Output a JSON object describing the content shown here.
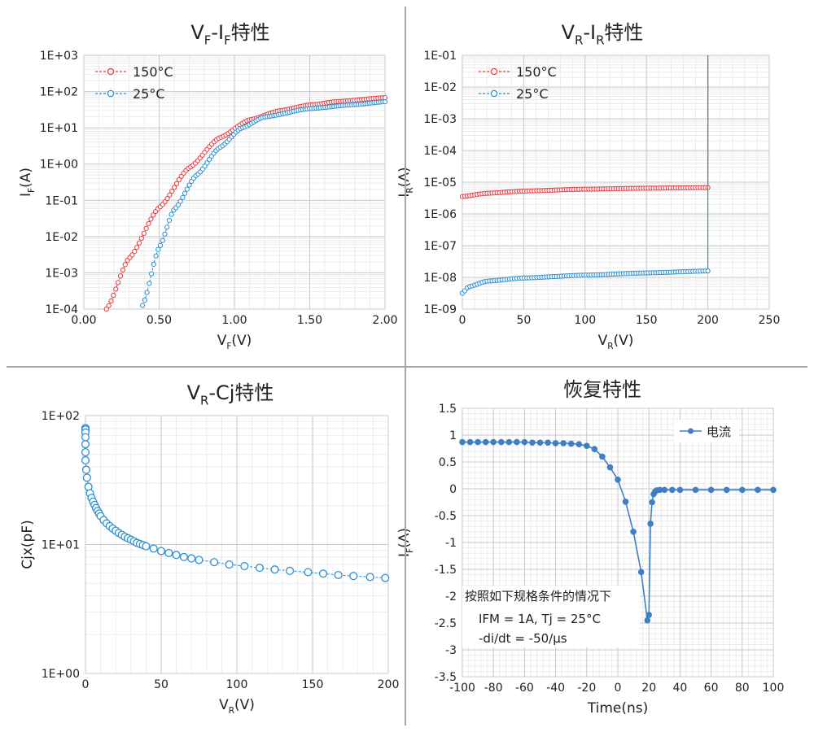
{
  "colors": {
    "hot": "#e8383d",
    "cold": "#2b8fcf",
    "blue": "#3f7fc4",
    "grid_major": "#c9c9c9",
    "grid_minor": "#e6e6e6",
    "divider": "#a6a6a6",
    "axis_text": "#222222"
  },
  "chart_data": [
    {
      "type": "scatter",
      "title": "VF-IF特性",
      "title_parts": [
        "V",
        "F",
        "-I",
        "F",
        "特性"
      ],
      "xlabel": "VF(V)",
      "xlabel_parts": [
        "V",
        "F",
        "(V)"
      ],
      "ylabel": "IF(A)",
      "ylabel_parts": [
        "I",
        "F",
        "(A)"
      ],
      "xlim": [
        0,
        2
      ],
      "ylim": [
        -4,
        3
      ],
      "yscale": "log",
      "xticks": [
        "0.00",
        "0.50",
        "1.00",
        "1.50",
        "2.00"
      ],
      "yticks": [
        "1E-04",
        "1E-03",
        "1E-02",
        "1E-01",
        "1E+00",
        "1E+01",
        "1E+02",
        "1E+03"
      ],
      "legend": "top-left",
      "series": [
        {
          "name": "150°C",
          "color_key": "hot",
          "x_range": [
            0.15,
            2.0
          ],
          "n": 120,
          "points_xy_log": [
            [
              0.15,
              -4
            ],
            [
              0.3,
              -2.6
            ],
            [
              0.5,
              -1.2
            ],
            [
              0.7,
              -0.1
            ],
            [
              0.9,
              0.72
            ],
            [
              1.1,
              1.22
            ],
            [
              1.3,
              1.47
            ],
            [
              1.5,
              1.63
            ],
            [
              1.7,
              1.73
            ],
            [
              2.0,
              1.83
            ]
          ]
        },
        {
          "name": "25°C",
          "color_key": "cold",
          "x_range": [
            0.39,
            2.0
          ],
          "n": 110,
          "points_xy_log": [
            [
              0.39,
              -3.9
            ],
            [
              0.5,
              -2.3
            ],
            [
              0.6,
              -1.25
            ],
            [
              0.75,
              -0.3
            ],
            [
              0.9,
              0.45
            ],
            [
              1.05,
              1.0
            ],
            [
              1.2,
              1.3
            ],
            [
              1.5,
              1.53
            ],
            [
              1.8,
              1.64
            ],
            [
              2.0,
              1.72
            ]
          ]
        }
      ]
    },
    {
      "type": "scatter",
      "title": "VR-IR特性",
      "title_parts": [
        "V",
        "R",
        "-I",
        "R",
        "特性"
      ],
      "xlabel": "VR(V)",
      "xlabel_parts": [
        "V",
        "R",
        "(V)"
      ],
      "ylabel": "IR(A)",
      "ylabel_parts": [
        "I",
        "R",
        "(A)"
      ],
      "xlim": [
        0,
        250
      ],
      "ylim": [
        -9,
        -1
      ],
      "yscale": "log",
      "xticks": [
        "0",
        "50",
        "100",
        "150",
        "200",
        "250"
      ],
      "yticks": [
        "1E-09",
        "1E-08",
        "1E-07",
        "1E-06",
        "1E-05",
        "1E-04",
        "1E-03",
        "1E-02",
        "1E-01"
      ],
      "legend": "top-left",
      "series": [
        {
          "name": "150°C",
          "color_key": "hot",
          "x_range": [
            0,
            200
          ],
          "n": 100,
          "breakdown_x": 200,
          "points_xy_log": [
            [
              0,
              -5.45
            ],
            [
              20,
              -5.35
            ],
            [
              50,
              -5.28
            ],
            [
              100,
              -5.22
            ],
            [
              150,
              -5.19
            ],
            [
              200,
              -5.17
            ]
          ]
        },
        {
          "name": "25°C",
          "color_key": "cold",
          "x_range": [
            0,
            200
          ],
          "n": 100,
          "breakdown_x": 200,
          "points_xy_log": [
            [
              0,
              -8.5
            ],
            [
              5,
              -8.3
            ],
            [
              20,
              -8.12
            ],
            [
              50,
              -8.02
            ],
            [
              100,
              -7.93
            ],
            [
              150,
              -7.86
            ],
            [
              200,
              -7.8
            ]
          ]
        }
      ]
    },
    {
      "type": "scatter",
      "title": "VR-Cj特性",
      "title_parts": [
        "V",
        "R",
        "-Cj",
        "",
        "特性"
      ],
      "xlabel": "VR(V)",
      "xlabel_parts": [
        "V",
        "R",
        "(V)"
      ],
      "ylabel": "Cjx(pF)",
      "xlim": [
        0,
        200
      ],
      "ylim": [
        0,
        2
      ],
      "yscale": "log",
      "xticks": [
        "0",
        "50",
        "100",
        "150",
        "200"
      ],
      "yticks": [
        "1E+00",
        "1E+01",
        "1E+02"
      ],
      "series": [
        {
          "color_key": "cold",
          "x": [
            0,
            0,
            0,
            0,
            0,
            0,
            0,
            0.5,
            1,
            2,
            3,
            4,
            5,
            6,
            7,
            8,
            9,
            10,
            12,
            14,
            16,
            18,
            20,
            22,
            24,
            26,
            28,
            30,
            32,
            34,
            36,
            38,
            40,
            45,
            50,
            55,
            60,
            65,
            70,
            75,
            85,
            95,
            105,
            115,
            125,
            135,
            147,
            157,
            167,
            177,
            188,
            198
          ],
          "y": [
            80,
            78,
            74,
            68,
            60,
            52,
            45,
            38,
            33,
            28,
            25,
            23,
            21.5,
            20.3,
            19.2,
            18.2,
            17.4,
            16.6,
            15.5,
            14.6,
            13.9,
            13.3,
            12.8,
            12.3,
            11.9,
            11.5,
            11.2,
            10.9,
            10.6,
            10.3,
            10.1,
            9.9,
            9.7,
            9.3,
            8.9,
            8.6,
            8.3,
            8.0,
            7.8,
            7.6,
            7.3,
            7.0,
            6.8,
            6.6,
            6.4,
            6.25,
            6.1,
            5.95,
            5.8,
            5.7,
            5.6,
            5.5
          ]
        }
      ]
    },
    {
      "type": "line",
      "title": "恢复特性",
      "xlabel": "Time(ns)",
      "ylabel": "IF(A)",
      "ylabel_parts": [
        "I",
        "F",
        "(A)"
      ],
      "xlim": [
        -100,
        100
      ],
      "ylim": [
        -3.5,
        1.5
      ],
      "xticks": [
        "-100",
        "-80",
        "-60",
        "-40",
        "-20",
        "0",
        "20",
        "40",
        "60",
        "80",
        "100"
      ],
      "yticks": [
        "1.5",
        "1",
        "0.5",
        "0",
        "-0.5",
        "-1",
        "-1.5",
        "-2",
        "-2.5",
        "-3",
        "-3.5"
      ],
      "legend": "top-right",
      "annotation": [
        "按照如下规格条件的情况下",
        "IFM = 1A, Tj = 25°C",
        "-di/dt = -50/μs"
      ],
      "series": [
        {
          "name": "电流",
          "color_key": "blue",
          "x": [
            -100,
            -95,
            -90,
            -85,
            -80,
            -75,
            -70,
            -65,
            -60,
            -55,
            -50,
            -45,
            -40,
            -35,
            -30,
            -25,
            -20,
            -15,
            -10,
            -5,
            0,
            5,
            10,
            15,
            19,
            20,
            21,
            22,
            23,
            24,
            25,
            27,
            30,
            35,
            40,
            50,
            60,
            70,
            80,
            90,
            100
          ],
          "y": [
            0.87,
            0.87,
            0.87,
            0.87,
            0.87,
            0.87,
            0.87,
            0.87,
            0.87,
            0.86,
            0.86,
            0.86,
            0.85,
            0.85,
            0.84,
            0.83,
            0.8,
            0.74,
            0.6,
            0.4,
            0.17,
            -0.24,
            -0.8,
            -1.55,
            -2.45,
            -2.35,
            -0.65,
            -0.25,
            -0.1,
            -0.05,
            -0.03,
            -0.02,
            -0.02,
            -0.02,
            -0.02,
            -0.02,
            -0.02,
            -0.02,
            -0.02,
            -0.02,
            -0.02
          ]
        }
      ]
    }
  ]
}
